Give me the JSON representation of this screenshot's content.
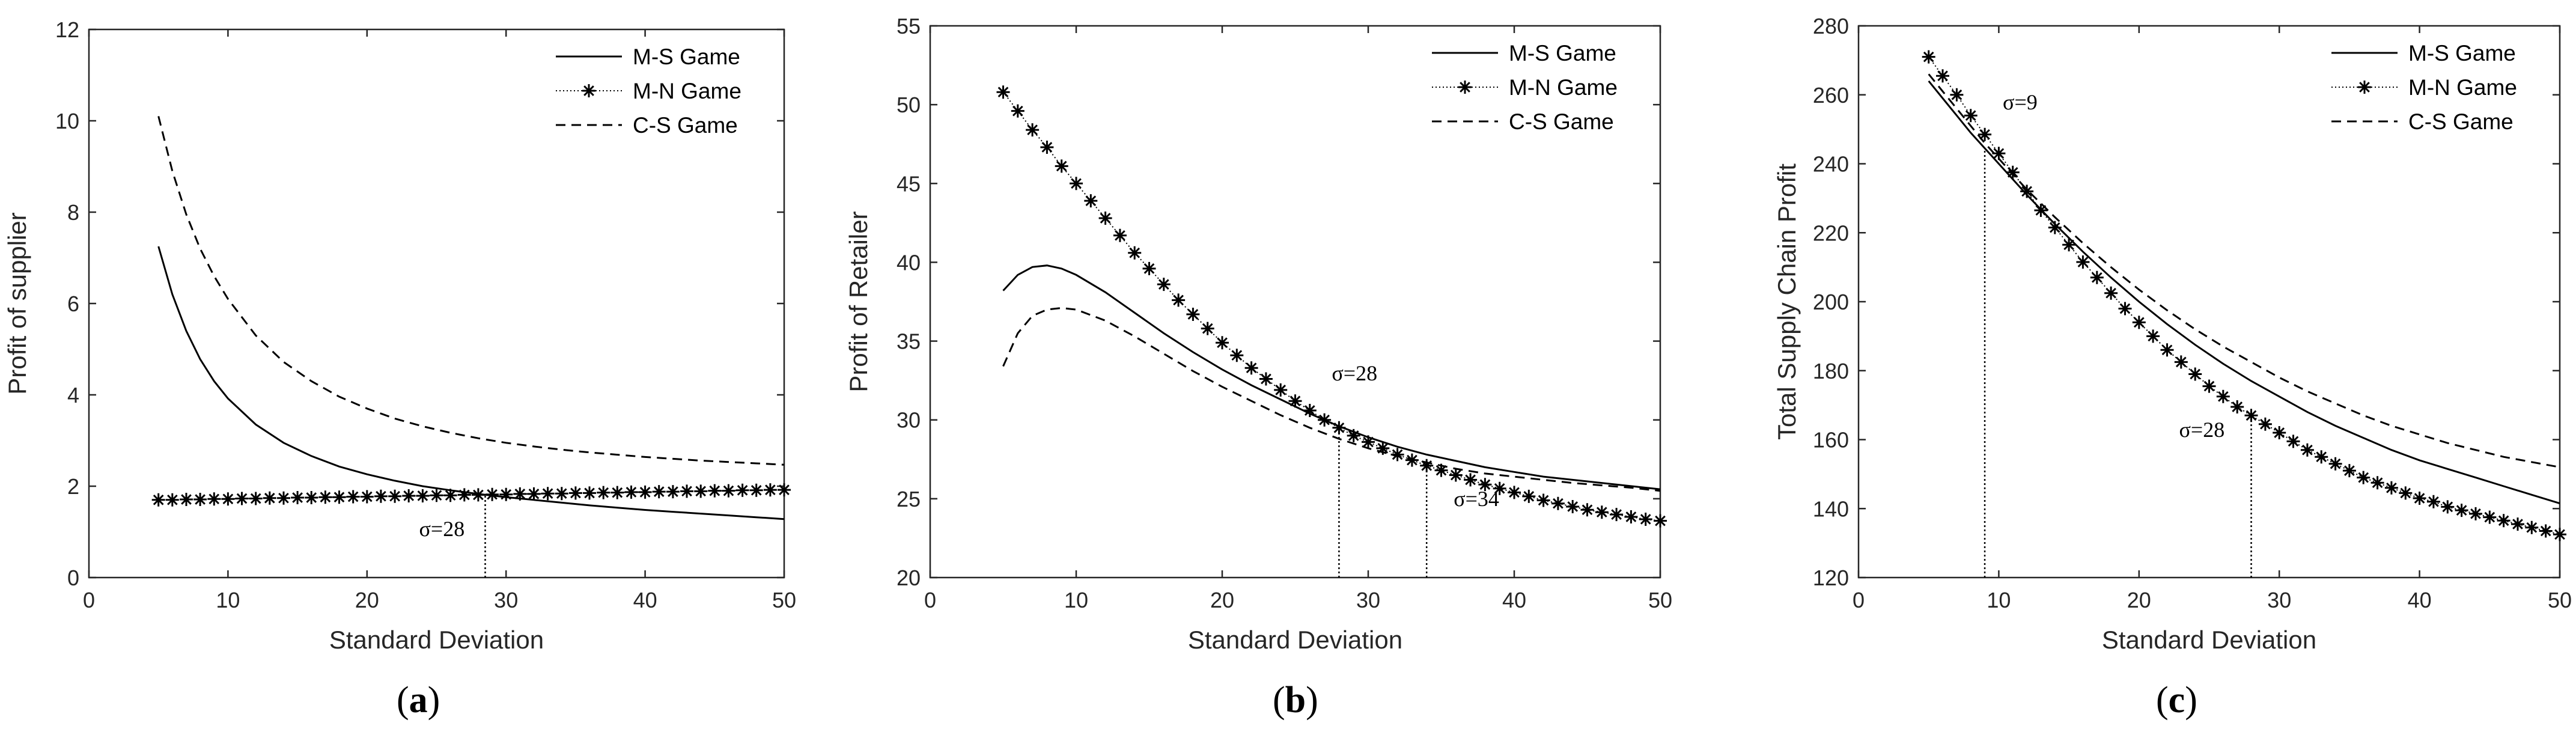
{
  "chart_data": [
    {
      "type": "line",
      "caption_letter": "a",
      "xlabel": "Standard Deviation",
      "ylabel": "Profit of supplier",
      "xlim": [
        0,
        50
      ],
      "ylim": [
        0,
        12
      ],
      "xticks": [
        0,
        10,
        20,
        30,
        40,
        50
      ],
      "yticks": [
        0,
        2,
        4,
        6,
        8,
        10,
        12
      ],
      "legend_position": "top-right",
      "series": [
        {
          "name": "M-S Game",
          "style": "solid",
          "x": [
            5,
            6,
            7,
            8,
            9,
            10,
            12,
            14,
            16,
            18,
            20,
            22,
            24,
            26,
            28,
            30,
            32,
            34,
            36,
            38,
            40,
            42,
            44,
            46,
            48,
            50
          ],
          "y": [
            7.25,
            6.2,
            5.4,
            4.78,
            4.3,
            3.92,
            3.35,
            2.95,
            2.66,
            2.43,
            2.26,
            2.12,
            2.0,
            1.91,
            1.83,
            1.76,
            1.7,
            1.64,
            1.58,
            1.53,
            1.48,
            1.44,
            1.4,
            1.36,
            1.32,
            1.28
          ]
        },
        {
          "name": "M-N Game",
          "style": "dotted-star",
          "x": [
            5,
            6,
            7,
            8,
            9,
            10,
            11,
            12,
            13,
            14,
            15,
            16,
            17,
            18,
            19,
            20,
            21,
            22,
            23,
            24,
            25,
            26,
            27,
            28,
            29,
            30,
            31,
            32,
            33,
            34,
            35,
            36,
            37,
            38,
            39,
            40,
            41,
            42,
            43,
            44,
            45,
            46,
            47,
            48,
            49,
            50
          ],
          "y": [
            1.7,
            1.7,
            1.71,
            1.71,
            1.72,
            1.72,
            1.73,
            1.73,
            1.74,
            1.74,
            1.75,
            1.75,
            1.76,
            1.76,
            1.77,
            1.77,
            1.78,
            1.78,
            1.79,
            1.79,
            1.8,
            1.8,
            1.81,
            1.81,
            1.82,
            1.82,
            1.83,
            1.83,
            1.84,
            1.84,
            1.85,
            1.85,
            1.86,
            1.86,
            1.87,
            1.87,
            1.88,
            1.88,
            1.89,
            1.89,
            1.9,
            1.9,
            1.91,
            1.91,
            1.92,
            1.92
          ]
        },
        {
          "name": "C-S Game",
          "style": "dashed",
          "x": [
            5,
            6,
            7,
            8,
            9,
            10,
            12,
            14,
            16,
            18,
            20,
            22,
            24,
            26,
            28,
            30,
            32,
            34,
            36,
            38,
            40,
            42,
            44,
            46,
            48,
            50
          ],
          "y": [
            10.1,
            8.9,
            7.95,
            7.2,
            6.6,
            6.1,
            5.3,
            4.72,
            4.3,
            3.96,
            3.7,
            3.48,
            3.31,
            3.17,
            3.05,
            2.95,
            2.87,
            2.8,
            2.74,
            2.69,
            2.64,
            2.6,
            2.56,
            2.53,
            2.5,
            2.47
          ]
        }
      ],
      "annotations": [
        {
          "text": "σ=28",
          "x": 28.5,
          "y_from": 0,
          "y_to": 1.82
        }
      ]
    },
    {
      "type": "line",
      "caption_letter": "b",
      "xlabel": "Standard Deviation",
      "ylabel": "Profit of Retailer",
      "xlim": [
        0,
        50
      ],
      "ylim": [
        20,
        55
      ],
      "xticks": [
        0,
        10,
        20,
        30,
        40,
        50
      ],
      "yticks": [
        20,
        25,
        30,
        35,
        40,
        45,
        50,
        55
      ],
      "legend_position": "top-right",
      "series": [
        {
          "name": "M-S Game",
          "style": "solid",
          "x": [
            5,
            6,
            7,
            8,
            9,
            10,
            12,
            14,
            16,
            18,
            20,
            22,
            24,
            26,
            28,
            30,
            32,
            34,
            36,
            38,
            40,
            42,
            44,
            46,
            48,
            50
          ],
          "y": [
            38.2,
            39.2,
            39.7,
            39.8,
            39.6,
            39.2,
            38.1,
            36.8,
            35.5,
            34.3,
            33.2,
            32.2,
            31.3,
            30.4,
            29.6,
            28.9,
            28.3,
            27.8,
            27.4,
            27.0,
            26.7,
            26.4,
            26.2,
            26.0,
            25.8,
            25.6
          ]
        },
        {
          "name": "M-N Game",
          "style": "dotted-star",
          "x": [
            5,
            6,
            7,
            8,
            9,
            10,
            11,
            12,
            13,
            14,
            15,
            16,
            17,
            18,
            19,
            20,
            21,
            22,
            23,
            24,
            25,
            26,
            27,
            28,
            29,
            30,
            31,
            32,
            33,
            34,
            35,
            36,
            37,
            38,
            39,
            40,
            41,
            42,
            43,
            44,
            45,
            46,
            47,
            48,
            49,
            50
          ],
          "y": [
            50.8,
            49.6,
            48.4,
            47.3,
            46.1,
            45.0,
            43.9,
            42.8,
            41.7,
            40.6,
            39.6,
            38.6,
            37.6,
            36.7,
            35.8,
            34.9,
            34.1,
            33.3,
            32.6,
            31.9,
            31.2,
            30.6,
            30.0,
            29.5,
            29.0,
            28.6,
            28.2,
            27.8,
            27.45,
            27.1,
            26.8,
            26.5,
            26.2,
            25.9,
            25.65,
            25.4,
            25.15,
            24.9,
            24.7,
            24.5,
            24.3,
            24.15,
            24.0,
            23.85,
            23.7,
            23.6
          ]
        },
        {
          "name": "C-S Game",
          "style": "dashed",
          "x": [
            5,
            6,
            7,
            8,
            9,
            10,
            12,
            14,
            16,
            18,
            20,
            22,
            24,
            26,
            28,
            30,
            32,
            34,
            36,
            38,
            40,
            42,
            44,
            46,
            48,
            50
          ],
          "y": [
            33.4,
            35.5,
            36.6,
            37.0,
            37.1,
            37.0,
            36.3,
            35.3,
            34.2,
            33.1,
            32.1,
            31.2,
            30.3,
            29.5,
            28.8,
            28.2,
            27.7,
            27.3,
            26.9,
            26.6,
            26.4,
            26.2,
            26.0,
            25.85,
            25.7,
            25.5
          ]
        }
      ],
      "annotations": [
        {
          "text": "σ=28",
          "x": 28,
          "y_from": 20,
          "y_to": 29.5
        },
        {
          "text": "σ=34",
          "x": 34,
          "y_from": 20,
          "y_to": 27.5
        }
      ]
    },
    {
      "type": "line",
      "caption_letter": "c",
      "xlabel": "Standard Deviation",
      "ylabel": "Total Supply Chain Profit",
      "xlim": [
        0,
        50
      ],
      "ylim": [
        120,
        280
      ],
      "xticks": [
        0,
        10,
        20,
        30,
        40,
        50
      ],
      "yticks": [
        120,
        140,
        160,
        180,
        200,
        220,
        240,
        260,
        280
      ],
      "legend_position": "top-right",
      "series": [
        {
          "name": "M-S Game",
          "style": "solid",
          "x": [
            5,
            6,
            7,
            8,
            9,
            10,
            12,
            14,
            16,
            18,
            20,
            22,
            24,
            26,
            28,
            30,
            32,
            34,
            36,
            38,
            40,
            42,
            44,
            46,
            48,
            50
          ],
          "y": [
            264,
            259,
            254,
            249,
            244.5,
            240,
            231,
            222.5,
            214.5,
            207,
            200,
            193.5,
            187.5,
            182,
            177,
            172.5,
            168,
            164,
            160.5,
            157,
            154,
            151.5,
            149,
            146.5,
            144,
            141.5
          ]
        },
        {
          "name": "M-N Game",
          "style": "dotted-star",
          "x": [
            5,
            6,
            7,
            8,
            9,
            10,
            11,
            12,
            13,
            14,
            15,
            16,
            17,
            18,
            19,
            20,
            21,
            22,
            23,
            24,
            25,
            26,
            27,
            28,
            29,
            30,
            31,
            32,
            33,
            34,
            35,
            36,
            37,
            38,
            39,
            40,
            41,
            42,
            43,
            44,
            45,
            46,
            47,
            48,
            49,
            50
          ],
          "y": [
            271,
            265.5,
            260,
            254,
            248.5,
            243,
            237.5,
            232,
            226.5,
            221.5,
            216.5,
            211.5,
            207,
            202.5,
            198,
            194,
            190,
            186,
            182.5,
            179,
            175.5,
            172.5,
            169.5,
            167,
            164.5,
            162,
            159.5,
            157,
            155,
            153,
            151,
            149,
            147.5,
            146,
            144.5,
            143,
            142,
            140.5,
            139.5,
            138.5,
            137.5,
            136.5,
            135.5,
            134.5,
            133.5,
            132.5
          ]
        },
        {
          "name": "C-S Game",
          "style": "dashed",
          "x": [
            5,
            6,
            7,
            8,
            9,
            10,
            12,
            14,
            16,
            18,
            20,
            22,
            24,
            26,
            28,
            30,
            32,
            34,
            36,
            38,
            40,
            42,
            44,
            46,
            48,
            50
          ],
          "y": [
            266,
            261,
            256,
            251,
            246,
            241.5,
            232.5,
            224.5,
            217,
            210,
            203.5,
            197.5,
            192,
            187,
            182.5,
            178,
            174,
            170.5,
            167,
            164,
            161.5,
            159,
            157,
            155,
            153.5,
            152
          ]
        }
      ],
      "annotations": [
        {
          "text": "σ=9",
          "x": 9,
          "y_from": 120,
          "y_to": 244
        },
        {
          "text": "σ=28",
          "x": 28,
          "y_from": 120,
          "y_to": 167
        }
      ]
    }
  ]
}
